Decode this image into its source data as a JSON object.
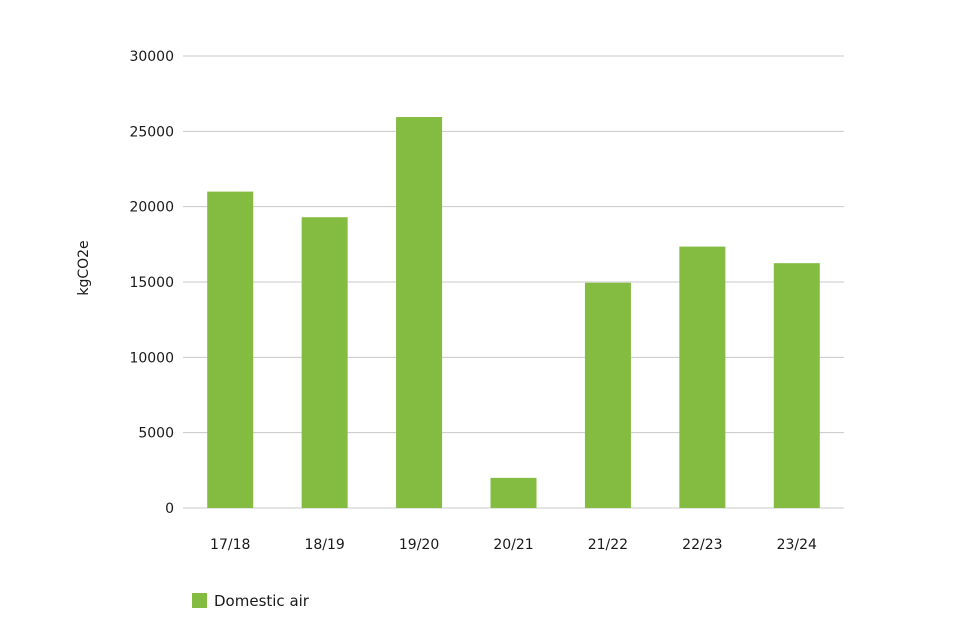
{
  "chart_data": {
    "type": "bar",
    "ylabel": "kgCO2e",
    "xlabel": "",
    "categories": [
      "17/18",
      "18/19",
      "19/20",
      "20/21",
      "21/22",
      "22/23",
      "23/24"
    ],
    "series": [
      {
        "name": "Domestic air",
        "color": "#84bc41",
        "values": [
          21000,
          19300,
          25950,
          2000,
          14950,
          17350,
          16250
        ]
      }
    ],
    "ylim": [
      0,
      30000
    ],
    "yticks": [
      0,
      5000,
      10000,
      15000,
      20000,
      25000,
      30000
    ],
    "grid": true,
    "legend_position": "bottom-left",
    "colors": {
      "bar": "#84bc41",
      "grid": "#c8c8c8",
      "text": "#1a1a1a"
    }
  }
}
